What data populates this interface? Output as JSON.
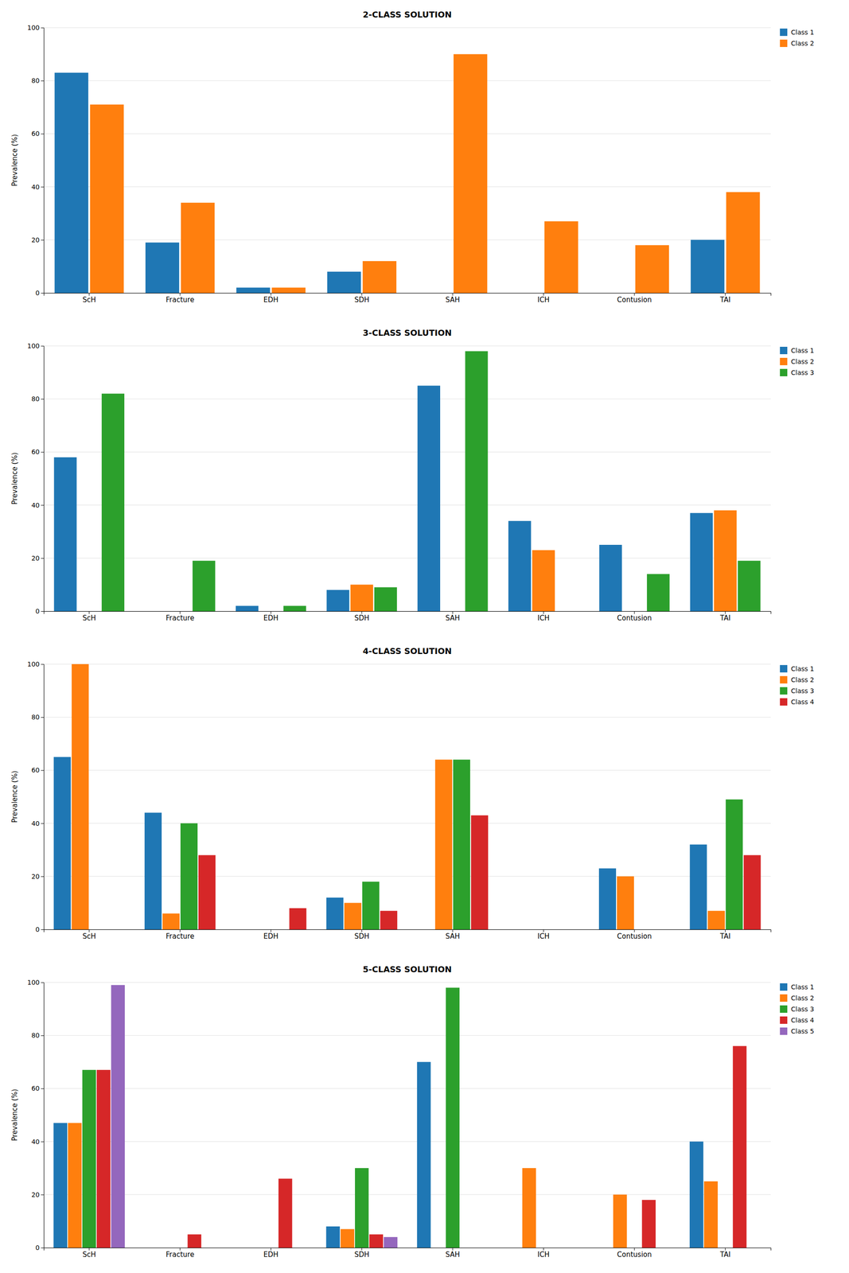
{
  "chart_data": [
    {
      "type": "bar",
      "title": "2-CLASS SOLUTION",
      "ylabel": "Prevalence (%)",
      "categories": [
        "ScH",
        "Fracture",
        "EDH",
        "SDH",
        "SAH",
        "ICH",
        "Contusion",
        "TAI"
      ],
      "series": [
        {
          "name": "Class 1",
          "values": [
            83,
            19,
            2,
            8,
            0,
            0,
            0,
            20
          ]
        },
        {
          "name": "Class 2",
          "values": [
            71,
            34,
            2,
            12,
            90,
            27,
            18,
            38
          ]
        }
      ],
      "ylim": [
        0,
        100
      ],
      "yticks": [
        0,
        20,
        40,
        60,
        80,
        100
      ],
      "grid": true,
      "legend": "upper right"
    },
    {
      "type": "bar",
      "title": "3-CLASS SOLUTION",
      "ylabel": "Prevalence (%)",
      "categories": [
        "ScH",
        "Fracture",
        "EDH",
        "SDH",
        "SAH",
        "ICH",
        "Contusion",
        "TAI"
      ],
      "series": [
        {
          "name": "Class 1",
          "values": [
            58,
            0,
            2,
            8,
            85,
            34,
            25,
            37
          ]
        },
        {
          "name": "Class 2",
          "values": [
            0,
            0,
            0,
            10,
            0,
            23,
            0,
            38
          ]
        },
        {
          "name": "Class 3",
          "values": [
            82,
            19,
            2,
            9,
            98,
            0,
            14,
            19
          ]
        }
      ],
      "ylim": [
        0,
        100
      ],
      "yticks": [
        0,
        20,
        40,
        60,
        80,
        100
      ],
      "grid": true,
      "legend": "upper right"
    },
    {
      "type": "bar",
      "title": "4-CLASS SOLUTION",
      "ylabel": "Prevalence (%)",
      "categories": [
        "ScH",
        "Fracture",
        "EDH",
        "SDH",
        "SAH",
        "ICH",
        "Contusion",
        "TAI"
      ],
      "series": [
        {
          "name": "Class 1",
          "values": [
            65,
            44,
            0,
            12,
            0,
            0,
            23,
            32
          ]
        },
        {
          "name": "Class 2",
          "values": [
            100,
            6,
            0,
            10,
            64,
            0,
            20,
            7
          ]
        },
        {
          "name": "Class 3",
          "values": [
            0,
            40,
            0,
            18,
            64,
            0,
            0,
            49
          ]
        },
        {
          "name": "Class 4",
          "values": [
            0,
            28,
            8,
            7,
            43,
            0,
            0,
            28
          ]
        }
      ],
      "ylim": [
        0,
        100
      ],
      "yticks": [
        0,
        20,
        40,
        60,
        80,
        100
      ],
      "grid": true,
      "legend": "upper right"
    },
    {
      "type": "bar",
      "title": "5-CLASS SOLUTION",
      "ylabel": "Prevalence (%)",
      "categories": [
        "ScH",
        "Fracture",
        "EDH",
        "SDH",
        "SAH",
        "ICH",
        "Contusion",
        "TAI"
      ],
      "series": [
        {
          "name": "Class 1",
          "values": [
            47,
            0,
            0,
            8,
            70,
            0,
            0,
            40
          ]
        },
        {
          "name": "Class 2",
          "values": [
            47,
            0,
            0,
            7,
            0,
            30,
            20,
            25
          ]
        },
        {
          "name": "Class 3",
          "values": [
            67,
            0,
            0,
            30,
            98,
            0,
            0,
            0
          ]
        },
        {
          "name": "Class 4",
          "values": [
            67,
            5,
            26,
            5,
            0,
            0,
            18,
            76
          ]
        },
        {
          "name": "Class 5",
          "values": [
            99,
            0,
            0,
            4,
            0,
            0,
            0,
            0
          ]
        }
      ],
      "ylim": [
        0,
        100
      ],
      "yticks": [
        0,
        20,
        40,
        60,
        80,
        100
      ],
      "grid": true,
      "legend": "upper right"
    }
  ]
}
